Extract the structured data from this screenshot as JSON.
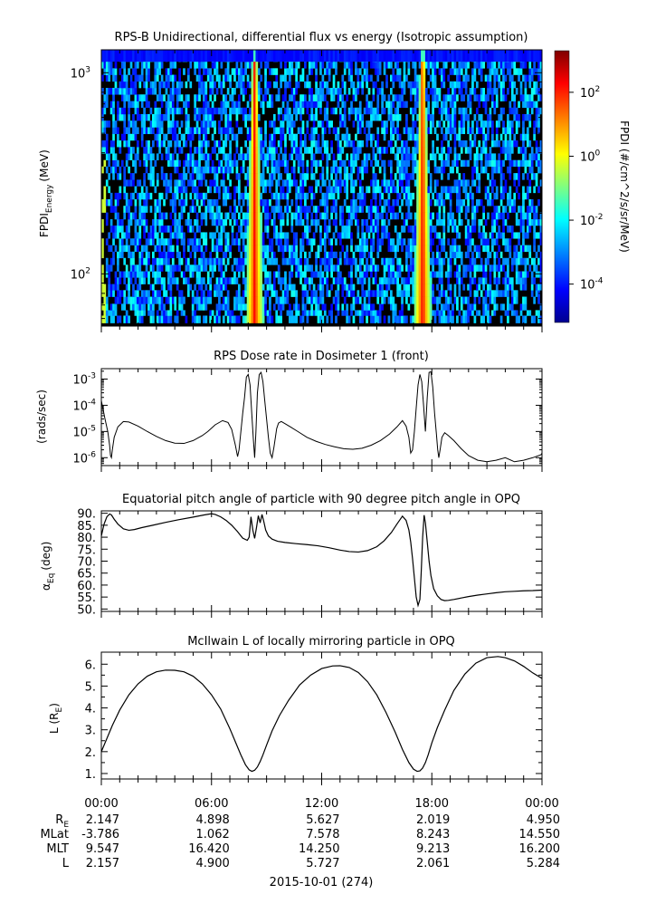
{
  "chart_data": [
    {
      "type": "heatmap",
      "title": "RPS-B  Unidirectional, differential flux vs energy (Isotropic assumption)",
      "ylabel_main": "FPDI",
      "ylabel_sub": "Energy",
      "ylabel_unit": "(MeV)",
      "yscale": "log",
      "ylim": [
        55,
        1300
      ],
      "yticks": [
        {
          "base": "10",
          "exp": "3",
          "value": 1000
        },
        {
          "base": "10",
          "exp": "2",
          "value": 100
        }
      ],
      "colorbar": {
        "label": "FPDI (#/cm^2/s/sr/MeV)",
        "scale": "log",
        "range_exp": [
          -5.2,
          3.3
        ],
        "ticks": [
          {
            "base": "10",
            "exp": "2",
            "value_exp": 2
          },
          {
            "base": "10",
            "exp": "0",
            "value_exp": 0
          },
          {
            "base": "10",
            "exp": "-2",
            "value_exp": -2
          },
          {
            "base": "10",
            "exp": "-4",
            "value_exp": -4
          }
        ],
        "colors": [
          "#00008f",
          "#0000ff",
          "#0080ff",
          "#00ffff",
          "#80ff80",
          "#ffff00",
          "#ff8000",
          "#ff0000",
          "#800000"
        ]
      },
      "energy_bins_mev": [
        57,
        62,
        66,
        71,
        77,
        83,
        89,
        96,
        103,
        111,
        120,
        129,
        139,
        150,
        161,
        174,
        187,
        202,
        218,
        235,
        253,
        273,
        294,
        317,
        342,
        368,
        397,
        428,
        461,
        497,
        536,
        578,
        623,
        671,
        723,
        780,
        841,
        906,
        977,
        1053,
        1135,
        1223
      ],
      "bands": [
        {
          "center_hour": 8.35,
          "width_hour_low_energy": 1.0,
          "width_hour_high_energy": 0.25
        },
        {
          "center_hour": 17.5,
          "width_hour_low_energy": 1.0,
          "width_hour_high_energy": 0.25
        }
      ],
      "top_band_energy_mev": [
        1135,
        1300
      ],
      "background_log_flux_range": [
        -4.2,
        -1.8
      ],
      "xlim_hours": [
        0,
        24
      ]
    },
    {
      "type": "line",
      "title": "RPS  Dose rate in Dosimeter 1 (front)",
      "ylabel": "(rads/sec)",
      "yscale": "log",
      "ylim": [
        5e-07,
        0.0025
      ],
      "yticks": [
        {
          "base": "10",
          "exp": "-3",
          "value": 0.001
        },
        {
          "base": "10",
          "exp": "-4",
          "value": 0.0001
        },
        {
          "base": "10",
          "exp": "-5",
          "value": 1e-05
        },
        {
          "base": "10",
          "exp": "-6",
          "value": 1e-06
        }
      ],
      "xlim_hours": [
        0,
        24
      ],
      "x_hours": [
        0.0,
        0.2,
        0.35,
        0.45,
        0.5,
        0.55,
        0.6,
        0.7,
        0.9,
        1.2,
        1.5,
        2.0,
        2.5,
        3.0,
        3.5,
        4.0,
        4.5,
        5.0,
        5.5,
        5.8,
        6.2,
        6.6,
        6.9,
        7.1,
        7.3,
        7.42,
        7.5,
        7.6,
        7.7,
        7.8,
        7.9,
        8.0,
        8.1,
        8.2,
        8.28,
        8.35,
        8.42,
        8.5,
        8.6,
        8.7,
        8.8,
        8.9,
        9.0,
        9.1,
        9.2,
        9.3,
        9.4,
        9.48,
        9.55,
        9.65,
        9.8,
        10.0,
        10.3,
        10.7,
        11.2,
        11.7,
        12.2,
        12.7,
        13.2,
        13.7,
        14.2,
        14.7,
        15.2,
        15.7,
        16.1,
        16.4,
        16.6,
        16.75,
        16.85,
        16.95,
        17.05,
        17.15,
        17.25,
        17.35,
        17.45,
        17.55,
        17.65,
        17.75,
        17.85,
        17.95,
        18.05,
        18.15,
        18.25,
        18.32,
        18.38,
        18.45,
        18.55,
        18.7,
        18.9,
        19.2,
        19.6,
        20.0,
        20.5,
        21.0,
        21.5,
        22.0,
        22.5,
        23.0,
        23.5,
        23.95,
        24.0
      ],
      "y": [
        0.00015,
        3e-05,
        1e-05,
        3e-06,
        1.2e-06,
        1e-06,
        2e-06,
        6e-06,
        1.5e-05,
        2.4e-05,
        2.3e-05,
        1.6e-05,
        1e-05,
        6.5e-06,
        4.5e-06,
        3.6e-06,
        3.5e-06,
        4.5e-06,
        7e-06,
        1e-05,
        1.8e-05,
        2.6e-05,
        2.2e-05,
        1.2e-05,
        3e-06,
        1.1e-06,
        2e-06,
        1e-05,
        5e-05,
        0.0002,
        0.0012,
        0.0015,
        0.0006,
        4e-05,
        5e-06,
        1e-06,
        1e-05,
        0.0003,
        0.0015,
        0.0018,
        0.0008,
        0.00015,
        3e-05,
        6e-06,
        1.5e-06,
        1e-06,
        2.5e-06,
        6e-06,
        1.3e-05,
        2.1e-05,
        2.4e-05,
        2e-05,
        1.5e-05,
        1e-05,
        6e-06,
        4.2e-06,
        3.2e-06,
        2.6e-06,
        2.2e-06,
        2.1e-06,
        2.3e-06,
        3e-06,
        4.5e-06,
        8e-06,
        1.5e-05,
        2.6e-05,
        1.6e-05,
        6e-06,
        1.5e-06,
        2e-06,
        1e-05,
        8e-05,
        0.0006,
        0.0015,
        0.0008,
        0.0001,
        1e-05,
        0.0002,
        0.0018,
        0.0019,
        0.0005,
        5e-05,
        8e-06,
        2e-06,
        1e-06,
        2e-06,
        6e-06,
        9e-06,
        7e-06,
        4.5e-06,
        2.2e-06,
        1.2e-06,
        8e-07,
        7e-07,
        8e-07,
        1e-06,
        7e-07,
        8e-07,
        1e-06,
        1.3e-06,
        1.5e-06
      ]
    },
    {
      "type": "line",
      "title": "Equatorial pitch angle of particle with 90 degree pitch angle in OPQ",
      "ylabel_main": "α",
      "ylabel_sub": "Eq",
      "ylabel_unit": "(deg)",
      "ylim": [
        49,
        91
      ],
      "yticks": [
        90,
        85,
        80,
        75,
        70,
        65,
        60,
        55,
        50
      ],
      "ytick_labels": [
        "90.",
        "85.",
        "80.",
        "75.",
        "70.",
        "65.",
        "60.",
        "55.",
        "50."
      ],
      "xlim_hours": [
        0,
        24
      ],
      "x_hours": [
        0.0,
        0.15,
        0.3,
        0.45,
        0.55,
        0.7,
        0.9,
        1.2,
        1.5,
        1.8,
        2.2,
        2.8,
        3.5,
        4.2,
        5.0,
        5.6,
        6.0,
        6.2,
        6.5,
        6.8,
        7.1,
        7.4,
        7.7,
        7.95,
        8.05,
        8.15,
        8.25,
        8.35,
        8.45,
        8.55,
        8.65,
        8.75,
        8.85,
        8.95,
        9.1,
        9.3,
        9.6,
        10.0,
        10.6,
        11.2,
        11.8,
        12.4,
        13.0,
        13.5,
        14.0,
        14.5,
        15.0,
        15.4,
        15.8,
        16.1,
        16.4,
        16.6,
        16.75,
        16.85,
        16.95,
        17.05,
        17.15,
        17.25,
        17.35,
        17.42,
        17.5,
        17.58,
        17.65,
        17.75,
        17.85,
        17.95,
        18.1,
        18.3,
        18.5,
        18.7,
        18.9,
        19.2,
        19.6,
        20.0,
        20.5,
        21.0,
        21.5,
        22.0,
        22.5,
        23.0,
        23.5,
        24.0
      ],
      "y": [
        80.5,
        85.5,
        88.5,
        89.7,
        89.3,
        87.5,
        85.5,
        83.5,
        82.9,
        83.2,
        84.0,
        85.0,
        86.2,
        87.3,
        88.4,
        89.3,
        89.8,
        89.5,
        88.5,
        87.0,
        85.0,
        82.5,
        79.6,
        78.7,
        80.0,
        88.5,
        83.0,
        79.5,
        84.0,
        89.0,
        86.0,
        89.5,
        86.5,
        83.0,
        80.5,
        79.2,
        78.3,
        77.8,
        77.3,
        76.9,
        76.4,
        75.6,
        74.6,
        74.0,
        73.8,
        74.4,
        76.0,
        78.5,
        82.0,
        85.5,
        88.8,
        87.0,
        83.0,
        78.0,
        71.0,
        63.0,
        55.0,
        51.5,
        54.0,
        65.0,
        80.0,
        89.2,
        86.0,
        78.0,
        70.0,
        64.0,
        58.5,
        55.5,
        54.0,
        53.5,
        53.6,
        54.0,
        54.6,
        55.2,
        55.8,
        56.3,
        56.8,
        57.2,
        57.4,
        57.6,
        57.7,
        57.9
      ]
    },
    {
      "type": "line",
      "title": "McIlwain L of locally mirroring particle in OPQ",
      "ylabel_main": "L (R",
      "ylabel_sub": "E",
      "ylabel_close": ")",
      "ylim": [
        0.75,
        6.55
      ],
      "yticks": [
        6,
        5,
        4,
        3,
        2,
        1
      ],
      "ytick_labels": [
        "6.",
        "5.",
        "4.",
        "3.",
        "2.",
        "1."
      ],
      "xlim_hours": [
        0,
        24
      ],
      "x_hours": [
        0.0,
        0.3,
        0.6,
        1.0,
        1.5,
        2.0,
        2.5,
        3.0,
        3.5,
        4.0,
        4.5,
        5.0,
        5.5,
        6.0,
        6.5,
        7.0,
        7.3,
        7.6,
        7.85,
        8.05,
        8.2,
        8.35,
        8.5,
        8.65,
        8.8,
        9.0,
        9.3,
        9.7,
        10.2,
        10.8,
        11.4,
        12.0,
        12.6,
        13.0,
        13.5,
        14.0,
        14.5,
        15.0,
        15.5,
        16.0,
        16.4,
        16.75,
        17.0,
        17.2,
        17.35,
        17.5,
        17.65,
        17.8,
        18.0,
        18.3,
        18.7,
        19.2,
        19.8,
        20.4,
        21.0,
        21.6,
        22.0,
        22.5,
        23.0,
        23.5,
        24.0
      ],
      "y": [
        2.0,
        2.6,
        3.2,
        3.9,
        4.6,
        5.1,
        5.45,
        5.65,
        5.73,
        5.72,
        5.65,
        5.45,
        5.1,
        4.6,
        3.95,
        3.05,
        2.45,
        1.85,
        1.4,
        1.17,
        1.1,
        1.15,
        1.3,
        1.55,
        1.85,
        2.3,
        2.95,
        3.65,
        4.35,
        5.05,
        5.5,
        5.8,
        5.92,
        5.93,
        5.85,
        5.62,
        5.2,
        4.6,
        3.8,
        2.9,
        2.1,
        1.5,
        1.2,
        1.1,
        1.12,
        1.25,
        1.5,
        1.85,
        2.4,
        3.1,
        3.9,
        4.8,
        5.55,
        6.05,
        6.3,
        6.35,
        6.3,
        6.15,
        5.9,
        5.6,
        5.35
      ]
    }
  ],
  "time_axis": {
    "tick_labels": [
      "00:00",
      "06:00",
      "12:00",
      "18:00",
      "00:00"
    ],
    "tick_hours": [
      0,
      6,
      12,
      18,
      24
    ],
    "minor_step_hours": 1
  },
  "ephemeris": {
    "row_labels": [
      {
        "main": "R",
        "sub": "E"
      },
      {
        "main": "MLat",
        "sub": ""
      },
      {
        "main": "MLT",
        "sub": ""
      },
      {
        "main": "L",
        "sub": ""
      }
    ],
    "rows": [
      [
        "2.147",
        "4.898",
        "5.627",
        "2.019",
        "4.950"
      ],
      [
        "-3.786",
        "1.062",
        "7.578",
        "8.243",
        "14.550"
      ],
      [
        "9.547",
        "16.420",
        "14.250",
        "9.213",
        "16.200"
      ],
      [
        "2.157",
        "4.900",
        "5.727",
        "2.061",
        "5.284"
      ]
    ]
  },
  "date_label": "2015-10-01 (274)"
}
